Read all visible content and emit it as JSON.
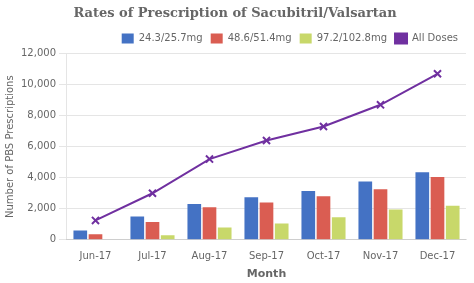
{
  "chart_data": {
    "type": "bar",
    "title": "Rates of Prescription of Sacubitril/Valsartan",
    "xlabel": "Month",
    "ylabel": "Number of PBS Prescriptions",
    "categories": [
      "Jun-17",
      "Jul-17",
      "Aug-17",
      "Sep-17",
      "Oct-17",
      "Nov-17",
      "Dec-17"
    ],
    "series": [
      {
        "name": "24.3/25.7mg",
        "type": "bar",
        "color": "#4472C4",
        "values": [
          600,
          1500,
          2300,
          2750,
          3150,
          3750,
          4350
        ]
      },
      {
        "name": "48.6/51.4mg",
        "type": "bar",
        "color": "#DA5D52",
        "values": [
          350,
          1150,
          2100,
          2400,
          2800,
          3250,
          4050
        ]
      },
      {
        "name": "97.2/102.8mg",
        "type": "bar",
        "color": "#C8D86A",
        "values": [
          0,
          300,
          800,
          1050,
          1450,
          1950,
          2200
        ]
      },
      {
        "name": "All Doses",
        "type": "line",
        "color": "#7030A0",
        "marker": "x",
        "values": [
          1250,
          3000,
          5200,
          6400,
          7300,
          8700,
          10700
        ]
      }
    ],
    "ylim": [
      0,
      12000
    ],
    "yticks": [
      0,
      {
        "value": 2000,
        "label": "2,000"
      },
      {
        "value": 4000,
        "label": "4,000"
      },
      {
        "value": 6000,
        "label": "6,000"
      },
      {
        "value": 8000,
        "label": "8,000"
      },
      {
        "value": 10000,
        "label": "10,000"
      },
      {
        "value": 12000,
        "label": "12,000"
      }
    ],
    "grid": true,
    "legend": "upper right"
  }
}
